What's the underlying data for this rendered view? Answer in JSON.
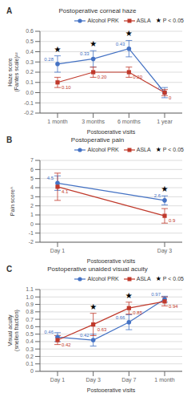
{
  "chart_data": [
    {
      "type": "line",
      "title": "Postoperative corneal haze",
      "x_label": "Postoperative visits",
      "y_label": "Haze score (Fantes scale)¹²",
      "categories": [
        "1 month",
        "3 months",
        "6 months",
        "1 year"
      ],
      "series": [
        {
          "name": "Alcohol PRK",
          "color": "#4472C4",
          "marker": "circle",
          "values": [
            0.28,
            0.33,
            0.43,
            0.0
          ],
          "errors": [
            0.08,
            0.08,
            0.08,
            0.05
          ],
          "value_labels": [
            "0.28",
            "0.33",
            "0.43",
            "0"
          ]
        },
        {
          "name": "ASLA",
          "color": "#C0392B",
          "marker": "square",
          "values": [
            0.1,
            0.2,
            0.2,
            0.0
          ],
          "errors": [
            0.05,
            0.05,
            0.05,
            0.03
          ],
          "value_labels": [
            "0.10",
            "0.20",
            "0.20",
            "0"
          ]
        }
      ],
      "ylim": [
        -0.2,
        0.6
      ],
      "yticks": [
        -0.2,
        -0.1,
        {
          "value": 0,
          "label": "0.0"
        },
        0.1,
        0.2,
        0.3,
        0.4,
        0.5,
        0.6
      ],
      "grid": true,
      "legend": "upper right",
      "data_labels": true,
      "annotations": [
        {
          "text": "A"
        },
        {
          "text": "★",
          "x": [
            "1 month",
            "3 months",
            "6 months"
          ],
          "legend": "P < 0.05",
          "color": "black"
        }
      ]
    },
    {
      "type": "line",
      "title": "Postoperative pain",
      "x_label": "Postoperative visits",
      "y_label": "Pain scoreᴬ",
      "categories": [
        "Day 1",
        "Day 3"
      ],
      "series": [
        {
          "name": "Alcohol PRK",
          "color": "#4472C4",
          "marker": "circle",
          "values": [
            4.5,
            2.6
          ],
          "errors": [
            0.8,
            0.5
          ],
          "value_labels": [
            "4.5",
            "2.6"
          ]
        },
        {
          "name": "ASLA",
          "color": "#C0392B",
          "marker": "square",
          "values": [
            4.1,
            0.9
          ],
          "errors": [
            1.5,
            0.8
          ],
          "value_labels": [
            "4.1",
            "0.9"
          ]
        }
      ],
      "ylim": [
        -2,
        7
      ],
      "yticks": [
        -2,
        -1,
        0,
        1,
        2,
        3,
        4,
        5,
        6,
        7
      ],
      "grid": true,
      "legend": "upper right",
      "data_labels": true,
      "annotations": [
        {
          "text": "B"
        },
        {
          "text": "★",
          "x": [
            "Day 3"
          ],
          "legend": "P < 0.05",
          "color": "black"
        }
      ]
    },
    {
      "type": "line",
      "title": "Postoperative unaided visual acuity",
      "x_label": "Postoperative visits",
      "y_label": "Visual acuity (snellen fraction)",
      "categories": [
        "Day 1",
        "Day 3",
        "Day 7",
        "1 month"
      ],
      "series": [
        {
          "name": "Alcohol PRK",
          "color": "#4472C4",
          "marker": "circle",
          "values": [
            0.46,
            0.42,
            0.66,
            0.97
          ],
          "errors": [
            0.06,
            0.08,
            0.1,
            0.04
          ],
          "value_labels": [
            "0.46",
            "0.42",
            "0.66",
            "0.97"
          ]
        },
        {
          "name": "ASLA",
          "color": "#C0392B",
          "marker": "square",
          "values": [
            0.42,
            0.63,
            0.85,
            0.94
          ],
          "errors": [
            0.06,
            0.15,
            0.08,
            0.06
          ],
          "value_labels": [
            "0.42",
            "0.63",
            "0.85",
            "0.94"
          ]
        }
      ],
      "ylim": [
        0,
        1.1
      ],
      "yticks": [
        0,
        0.1,
        0.2,
        0.3,
        0.4,
        0.5,
        0.6,
        0.7,
        0.8,
        0.9,
        {
          "value": 1.0,
          "label": "1.0"
        },
        1.1
      ],
      "grid": true,
      "legend": "upper right",
      "data_labels": true,
      "annotations": [
        {
          "text": "C"
        },
        {
          "text": "★",
          "x": [
            "Day 3",
            "Day 7"
          ],
          "legend": "P < 0.05",
          "color": "black"
        }
      ]
    }
  ]
}
